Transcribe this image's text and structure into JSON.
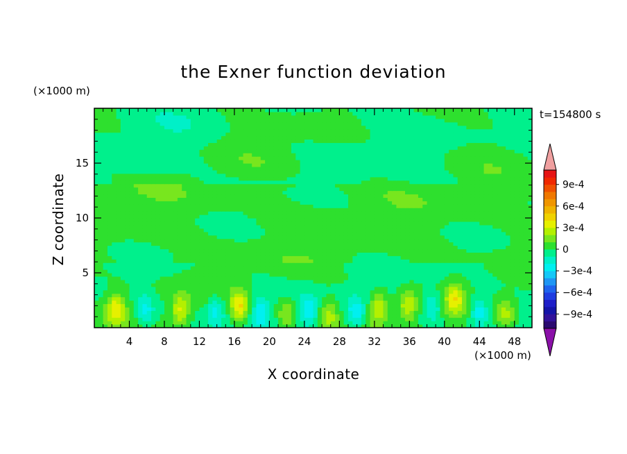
{
  "chart_data": {
    "type": "heatmap",
    "title": "the Exner function deviation",
    "xlabel": "X coordinate",
    "ylabel": "Z coordinate",
    "x_unit": "(×1000 m)",
    "y_unit": "(×1000 m)",
    "time_label": "t=154800 s",
    "xlim": [
      0,
      50
    ],
    "ylim": [
      0,
      20
    ],
    "x_ticks": [
      "4",
      "8",
      "12",
      "16",
      "20",
      "24",
      "28",
      "32",
      "36",
      "40",
      "44",
      "48"
    ],
    "y_ticks": [
      "5",
      "10",
      "15"
    ],
    "colorbar": {
      "labels": [
        "9e-4",
        "6e-4",
        "3e-4",
        "0",
        "−3e-4",
        "−6e-4",
        "−9e-4"
      ],
      "levels": [
        -0.0011,
        -0.001,
        -0.0009,
        -0.0008,
        -0.0007,
        -0.0006,
        -0.0005,
        -0.0004,
        -0.0003,
        -0.0002,
        -0.0001,
        0,
        0.0001,
        0.0002,
        0.0003,
        0.0004,
        0.0005,
        0.0006,
        0.0007,
        0.0008,
        0.0009,
        0.001,
        0.0011
      ],
      "colors": [
        "#2a0a70",
        "#32129a",
        "#1414a8",
        "#1e1ec8",
        "#1e3ce0",
        "#1e64ee",
        "#1e96f4",
        "#14c8f8",
        "#00f0f0",
        "#00f0c8",
        "#00f08c",
        "#2ee02e",
        "#78e61e",
        "#b4f000",
        "#e6f000",
        "#f0d200",
        "#f0b400",
        "#f09600",
        "#f07800",
        "#f05000",
        "#f02800",
        "#e61414"
      ],
      "under_color": "#8a10a8",
      "over_color": "#f0a0a0"
    },
    "field_description": "Exner function deviation; mostly near zero (two green bands) with weak positive (yellow-green) and negative (cyan) cells below 5 km",
    "features": [
      {
        "kind": "pos",
        "x": 2.5,
        "z": 1.8,
        "amp": 0.00035
      },
      {
        "kind": "pos",
        "x": 9.8,
        "z": 1.6,
        "amp": 0.00032
      },
      {
        "kind": "pos",
        "x": 16.6,
        "z": 2.0,
        "amp": 0.00038
      },
      {
        "kind": "pos",
        "x": 21.9,
        "z": 1.2,
        "amp": 0.00024
      },
      {
        "kind": "pos",
        "x": 26.8,
        "z": 1.2,
        "amp": 0.00024
      },
      {
        "kind": "pos",
        "x": 32.5,
        "z": 1.8,
        "amp": 0.00031
      },
      {
        "kind": "pos",
        "x": 35.8,
        "z": 2.0,
        "amp": 0.0003
      },
      {
        "kind": "pos",
        "x": 41.2,
        "z": 2.6,
        "amp": 0.00032
      },
      {
        "kind": "pos",
        "x": 47.0,
        "z": 1.2,
        "amp": 0.00024
      },
      {
        "kind": "neg",
        "x": 5.8,
        "z": 1.6,
        "amp": -0.00026
      },
      {
        "kind": "neg",
        "x": 13.9,
        "z": 1.6,
        "amp": -0.00024
      },
      {
        "kind": "neg",
        "x": 19.0,
        "z": 1.4,
        "amp": -0.00028
      },
      {
        "kind": "neg",
        "x": 24.5,
        "z": 1.6,
        "amp": -0.00023
      },
      {
        "kind": "neg",
        "x": 29.8,
        "z": 1.3,
        "amp": -0.00028
      },
      {
        "kind": "neg",
        "x": 38.6,
        "z": 2.0,
        "amp": -0.00026
      },
      {
        "kind": "neg",
        "x": 44.0,
        "z": 1.5,
        "amp": -0.0003
      }
    ]
  }
}
